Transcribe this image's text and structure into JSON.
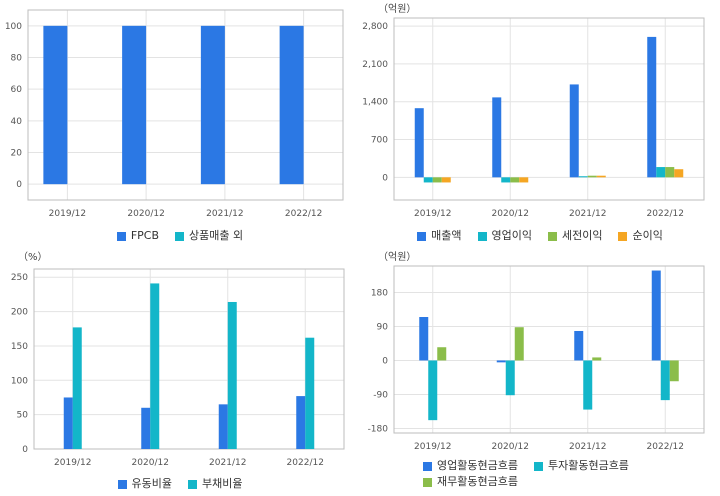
{
  "colors": {
    "blue": "#2b78e4",
    "teal": "#13b6c9",
    "green": "#8bbd4a",
    "orange": "#f5a623",
    "grid": "#e3e3e3",
    "frame": "#bdbdbd"
  },
  "chart_data": [
    {
      "type": "bar",
      "unit": "",
      "categories": [
        "2019/12",
        "2020/12",
        "2021/12",
        "2022/12"
      ],
      "series": [
        {
          "name": "FPCB",
          "values": [
            100,
            100,
            100,
            100
          ]
        },
        {
          "name": "상품매출 외",
          "values": [
            0,
            0,
            0,
            0
          ]
        }
      ],
      "yticks": [
        0,
        20,
        40,
        60,
        80,
        100
      ],
      "ylim": [
        -10,
        110
      ],
      "grid": true,
      "legend": "bottom"
    },
    {
      "type": "bar",
      "unit": "（억원）",
      "categories": [
        "2019/12",
        "2020/12",
        "2021/12",
        "2022/12"
      ],
      "series": [
        {
          "name": "매출액",
          "values": [
            1280,
            1480,
            1720,
            2600
          ]
        },
        {
          "name": "영업이익",
          "values": [
            -95,
            -95,
            20,
            190
          ]
        },
        {
          "name": "세전이익",
          "values": [
            -95,
            -95,
            30,
            190
          ]
        },
        {
          "name": "순이익",
          "values": [
            -95,
            -95,
            30,
            150
          ]
        }
      ],
      "yticks": [
        0,
        700,
        1400,
        2100,
        2800
      ],
      "yticklabels": [
        "0",
        "700",
        "1,400",
        "2,100",
        "2,800"
      ],
      "ylim": [
        -420,
        2950
      ],
      "grid": true,
      "legend": "bottom"
    },
    {
      "type": "bar",
      "unit": "（%）",
      "categories": [
        "2019/12",
        "2020/12",
        "2021/12",
        "2022/12"
      ],
      "series": [
        {
          "name": "유동비율",
          "values": [
            75,
            60,
            65,
            77
          ]
        },
        {
          "name": "부채비율",
          "values": [
            177,
            241,
            214,
            162
          ]
        }
      ],
      "yticks": [
        0,
        50,
        100,
        150,
        200,
        250
      ],
      "ylim": [
        0,
        262
      ],
      "grid": true,
      "legend": "bottom"
    },
    {
      "type": "bar",
      "unit": "（억원）",
      "categories": [
        "2019/12",
        "2020/12",
        "2021/12",
        "2022/12"
      ],
      "series": [
        {
          "name": "영업활동현금흐름",
          "values": [
            115,
            -5,
            78,
            238
          ]
        },
        {
          "name": "투자활동현금흐름",
          "values": [
            -158,
            -92,
            -130,
            -105
          ]
        },
        {
          "name": "재무활동현금흐름",
          "values": [
            35,
            88,
            8,
            -55
          ]
        }
      ],
      "yticks": [
        -180,
        -90,
        0,
        90,
        180
      ],
      "ylim": [
        -192,
        250
      ],
      "grid": true,
      "legend": "bottom"
    }
  ]
}
